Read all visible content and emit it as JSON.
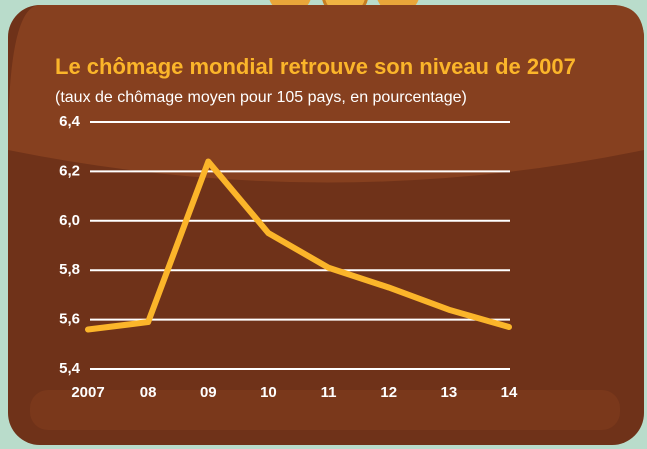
{
  "chart_data": {
    "type": "line",
    "title": "Le chômage mondial retrouve son niveau de 2007",
    "subtitle": "(taux de chômage moyen pour 105 pays, en pourcentage)",
    "categories": [
      "2007",
      "08",
      "09",
      "10",
      "11",
      "12",
      "13",
      "14"
    ],
    "values": [
      5.56,
      5.59,
      6.24,
      5.95,
      5.81,
      5.73,
      5.64,
      5.57
    ],
    "color": "#fbb52a",
    "ylim": [
      5.4,
      6.4
    ],
    "yticks": [
      {
        "value": 5.4,
        "label": "5,4"
      },
      {
        "value": 5.6,
        "label": "5,6"
      },
      {
        "value": 5.8,
        "label": "5,8"
      },
      {
        "value": 6.0,
        "label": "6,0"
      },
      {
        "value": 6.2,
        "label": "6,2"
      },
      {
        "value": 6.4,
        "label": "6,4"
      }
    ],
    "grid": true
  }
}
